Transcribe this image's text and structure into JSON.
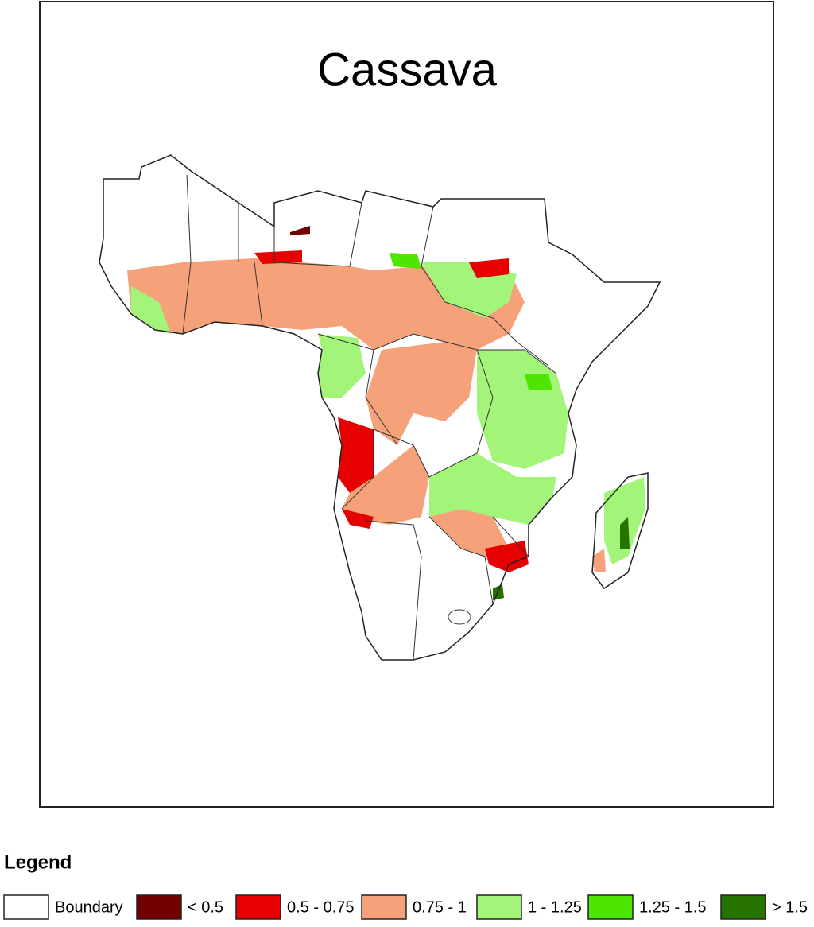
{
  "title": "Cassava",
  "legend": {
    "title": "Legend",
    "items": [
      {
        "label": "Boundary",
        "color": "#ffffff"
      },
      {
        "label": "< 0.5",
        "color": "#730000"
      },
      {
        "label": "0.5 - 0.75",
        "color": "#e60000"
      },
      {
        "label": "0.75 - 1",
        "color": "#f5a27a"
      },
      {
        "label": "1 - 1.25",
        "color": "#a3f57a"
      },
      {
        "label": "1.25 - 1.5",
        "color": "#4ce600"
      },
      {
        "label": "> 1.5",
        "color": "#267300"
      }
    ]
  }
}
